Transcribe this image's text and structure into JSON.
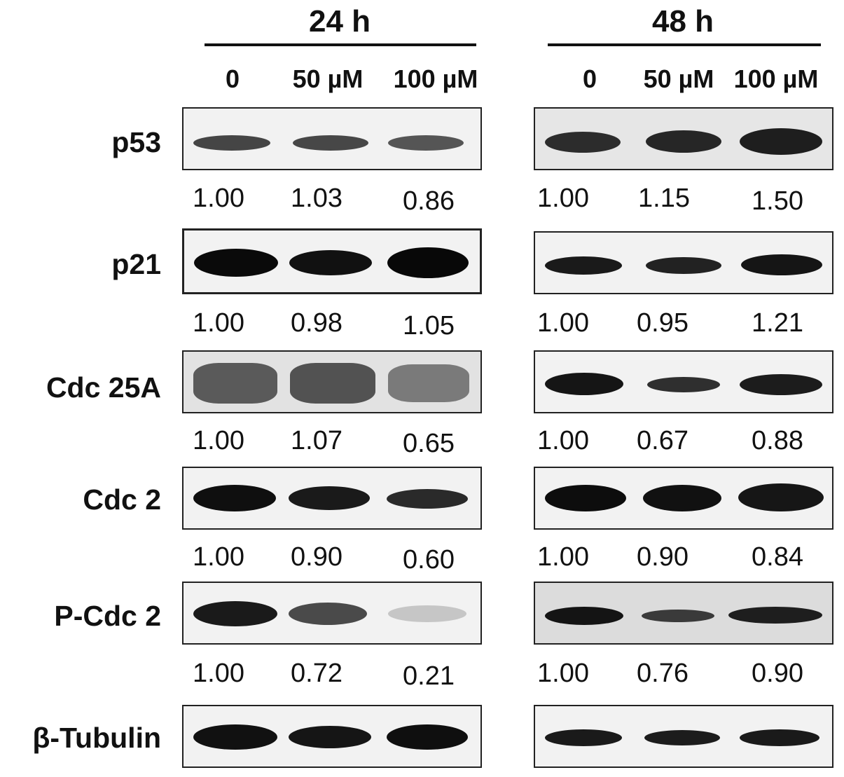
{
  "timepoints": [
    {
      "label": "24 h",
      "concentrations": [
        "0",
        "50 µM",
        "100 µM"
      ]
    },
    {
      "label": "48 h",
      "concentrations": [
        "0",
        "50 µM",
        "100 µM"
      ]
    }
  ],
  "rows": [
    {
      "protein": "p53",
      "values24": [
        "1.00",
        "1.03",
        "0.86"
      ],
      "values48": [
        "1.00",
        "1.15",
        "1.50"
      ]
    },
    {
      "protein": "p21",
      "values24": [
        "1.00",
        "0.98",
        "1.05"
      ],
      "values48": [
        "1.00",
        "0.95",
        "1.21"
      ]
    },
    {
      "protein": "Cdc 25A",
      "values24": [
        "1.00",
        "1.07",
        "0.65"
      ],
      "values48": [
        "1.00",
        "0.67",
        "0.88"
      ]
    },
    {
      "protein": "Cdc 2",
      "values24": [
        "1.00",
        "0.90",
        "0.60"
      ],
      "values48": [
        "1.00",
        "0.90",
        "0.84"
      ]
    },
    {
      "protein": "P-Cdc 2",
      "values24": [
        "1.00",
        "0.72",
        "0.21"
      ],
      "values48": [
        "1.00",
        "0.76",
        "0.90"
      ]
    },
    {
      "protein": "β-Tubulin"
    }
  ]
}
